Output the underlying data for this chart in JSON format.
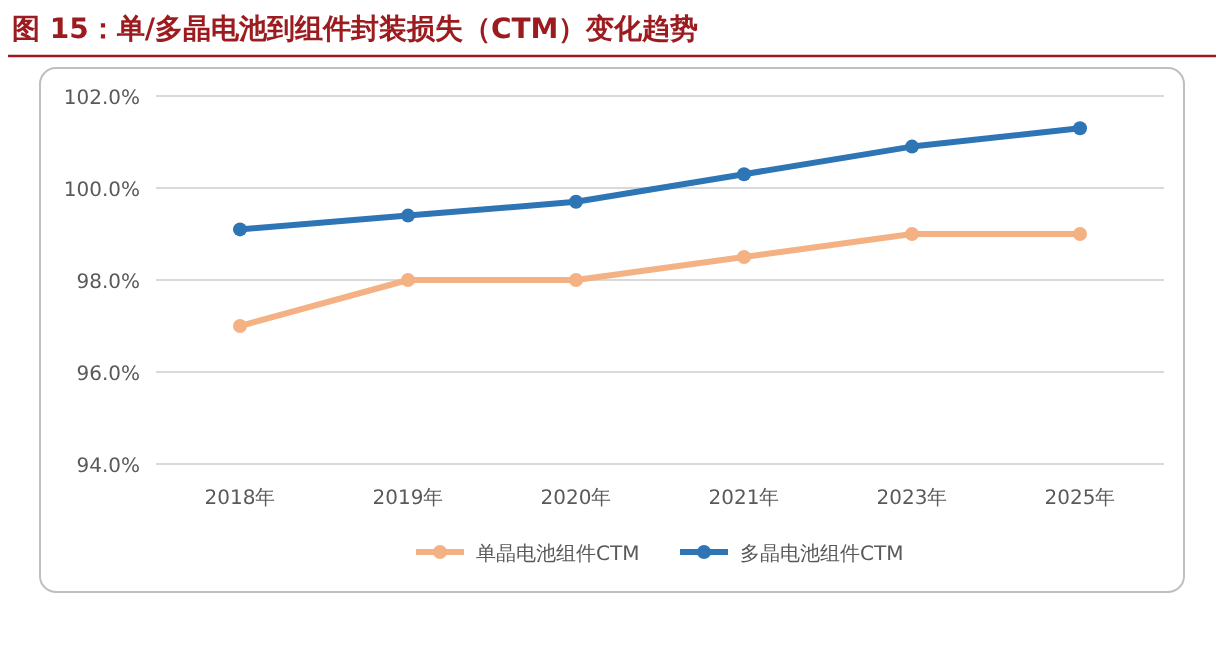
{
  "chart_data": {
    "type": "line",
    "title": "图 15：单/多晶电池到组件封装损失（CTM）变化趋势",
    "categories": [
      "2018年",
      "2019年",
      "2020年",
      "2021年",
      "2023年",
      "2025年"
    ],
    "series": [
      {
        "name": "单晶电池组件CTM",
        "color": "#f4b183",
        "values": [
          97.0,
          98.0,
          98.0,
          98.5,
          99.0,
          99.0
        ]
      },
      {
        "name": "多晶电池组件CTM",
        "color": "#2e75b6",
        "values": [
          99.1,
          99.4,
          99.7,
          100.3,
          100.9,
          101.3
        ]
      }
    ],
    "ylim": [
      94,
      102
    ],
    "yticks": [
      {
        "value": 94,
        "label": "94.0%"
      },
      {
        "value": 96,
        "label": "96.0%"
      },
      {
        "value": 98,
        "label": "98.0%"
      },
      {
        "value": 100,
        "label": "100.0%"
      },
      {
        "value": 102,
        "label": "102.0%"
      }
    ],
    "grid": "y",
    "legend": "bottom",
    "marker": "circle",
    "line_style": "solid"
  }
}
